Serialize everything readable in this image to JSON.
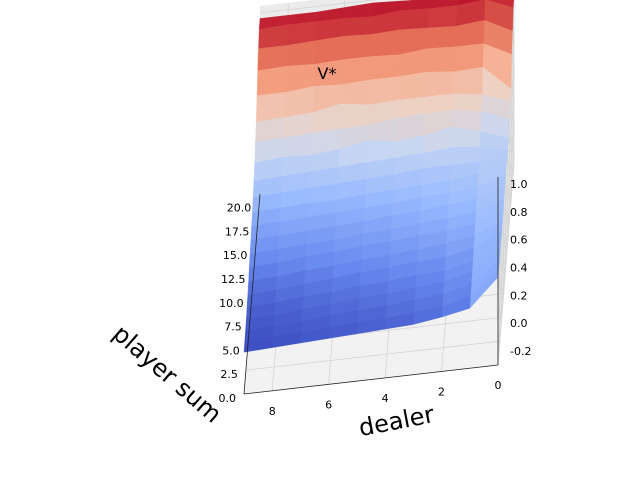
{
  "chart_data": {
    "type": "surface3d",
    "title": "V*",
    "xlabel": "dealer",
    "ylabel": "player sum",
    "zlabel": "",
    "dealer": [
      0,
      1,
      2,
      3,
      4,
      5,
      6,
      7,
      8,
      9
    ],
    "player_sum": [
      0,
      1,
      2,
      3,
      4,
      5,
      6,
      7,
      8,
      9,
      10,
      11,
      12,
      13,
      14,
      15,
      16,
      17,
      18,
      19,
      20,
      21
    ],
    "xlim": [
      0,
      9
    ],
    "ylim": [
      0,
      21
    ],
    "zlim": [
      -0.3,
      1.05
    ],
    "x_ticks": [
      "0",
      "2",
      "4",
      "6",
      "8"
    ],
    "y_ticks": [
      "0.0",
      "2.5",
      "5.0",
      "7.5",
      "10.0",
      "12.5",
      "15.0",
      "17.5",
      "20.0"
    ],
    "z_ticks": [
      "-0.2",
      "0.0",
      "0.2",
      "0.4",
      "0.6",
      "0.8",
      "1.0"
    ],
    "colormap": [
      "#3b4cc0",
      "#6788ee",
      "#9abbff",
      "#c9d7f0",
      "#edd1c2",
      "#f7a889",
      "#e26952",
      "#b40426"
    ],
    "grid": true,
    "V": [
      [
        0.33,
        0.33,
        0.33,
        0.33,
        0.33,
        0.32,
        0.33,
        0.34,
        0.35,
        0.36,
        0.37,
        0.39,
        0.36,
        0.36,
        0.37,
        0.44,
        0.5,
        0.52,
        0.7,
        0.8,
        0.9,
        0.92
      ],
      [
        0.13,
        0.15,
        0.17,
        0.19,
        0.2,
        0.22,
        0.24,
        0.26,
        0.28,
        0.3,
        0.32,
        0.34,
        0.36,
        0.4,
        0.44,
        0.52,
        0.57,
        0.7,
        0.8,
        0.9,
        0.98,
        0.98
      ],
      [
        0.09,
        0.1,
        0.12,
        0.14,
        0.15,
        0.18,
        0.21,
        0.23,
        0.25,
        0.28,
        0.3,
        0.32,
        0.36,
        0.42,
        0.5,
        0.55,
        0.6,
        0.69,
        0.8,
        0.88,
        0.96,
        0.98
      ],
      [
        0.06,
        0.08,
        0.1,
        0.12,
        0.14,
        0.17,
        0.19,
        0.22,
        0.24,
        0.26,
        0.29,
        0.31,
        0.36,
        0.4,
        0.46,
        0.55,
        0.6,
        0.71,
        0.81,
        0.89,
        0.96,
        0.96
      ],
      [
        0.05,
        0.06,
        0.08,
        0.1,
        0.12,
        0.15,
        0.17,
        0.2,
        0.22,
        0.25,
        0.27,
        0.3,
        0.34,
        0.39,
        0.44,
        0.54,
        0.6,
        0.7,
        0.79,
        0.9,
        0.97,
        0.97
      ],
      [
        0.04,
        0.05,
        0.07,
        0.09,
        0.11,
        0.14,
        0.16,
        0.19,
        0.21,
        0.23,
        0.26,
        0.29,
        0.33,
        0.38,
        0.47,
        0.51,
        0.59,
        0.7,
        0.8,
        0.89,
        0.95,
        0.98
      ],
      [
        0.03,
        0.04,
        0.06,
        0.07,
        0.09,
        0.12,
        0.14,
        0.17,
        0.19,
        0.22,
        0.25,
        0.27,
        0.32,
        0.37,
        0.43,
        0.51,
        0.62,
        0.69,
        0.8,
        0.9,
        0.96,
        0.97
      ],
      [
        0.02,
        0.03,
        0.04,
        0.06,
        0.08,
        0.1,
        0.13,
        0.16,
        0.18,
        0.21,
        0.24,
        0.27,
        0.31,
        0.36,
        0.41,
        0.5,
        0.58,
        0.7,
        0.79,
        0.89,
        0.96,
        0.96
      ],
      [
        0.01,
        0.02,
        0.03,
        0.04,
        0.06,
        0.08,
        0.11,
        0.14,
        0.17,
        0.2,
        0.23,
        0.26,
        0.3,
        0.35,
        0.42,
        0.49,
        0.57,
        0.68,
        0.8,
        0.88,
        0.96,
        0.96
      ],
      [
        0.0,
        0.01,
        0.02,
        0.03,
        0.05,
        0.07,
        0.1,
        0.13,
        0.16,
        0.19,
        0.22,
        0.25,
        0.29,
        0.34,
        0.4,
        0.48,
        0.56,
        0.68,
        0.79,
        0.88,
        0.95,
        0.96
      ]
    ]
  }
}
